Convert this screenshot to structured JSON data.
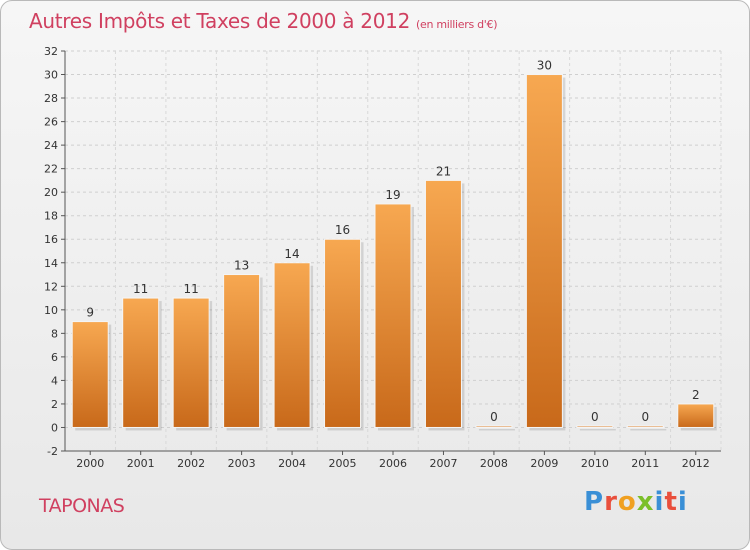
{
  "page": {
    "title": "Autres Impôts et Taxes de 2000 à 2012",
    "subtitle": "(en milliers d'€)",
    "town": "TAPONAS",
    "logo_text": "Proxiti"
  },
  "colors": {
    "bar_top": "#f7a851",
    "bar_bottom": "#c8691a",
    "title": "#d04060"
  },
  "chart_data": {
    "type": "bar",
    "categories": [
      "2000",
      "2001",
      "2002",
      "2003",
      "2004",
      "2005",
      "2006",
      "2007",
      "2008",
      "2009",
      "2010",
      "2011",
      "2012"
    ],
    "values": [
      9,
      11,
      11,
      13,
      14,
      16,
      19,
      21,
      0,
      30,
      0,
      0,
      2
    ],
    "title": "Autres Impôts et Taxes de 2000 à 2012",
    "xlabel": "",
    "ylabel": "",
    "ylim": [
      -2,
      32
    ],
    "yticks": [
      -2,
      0,
      2,
      4,
      6,
      8,
      10,
      12,
      14,
      16,
      18,
      20,
      22,
      24,
      26,
      28,
      30,
      32
    ],
    "grid": true,
    "legend": "none"
  }
}
